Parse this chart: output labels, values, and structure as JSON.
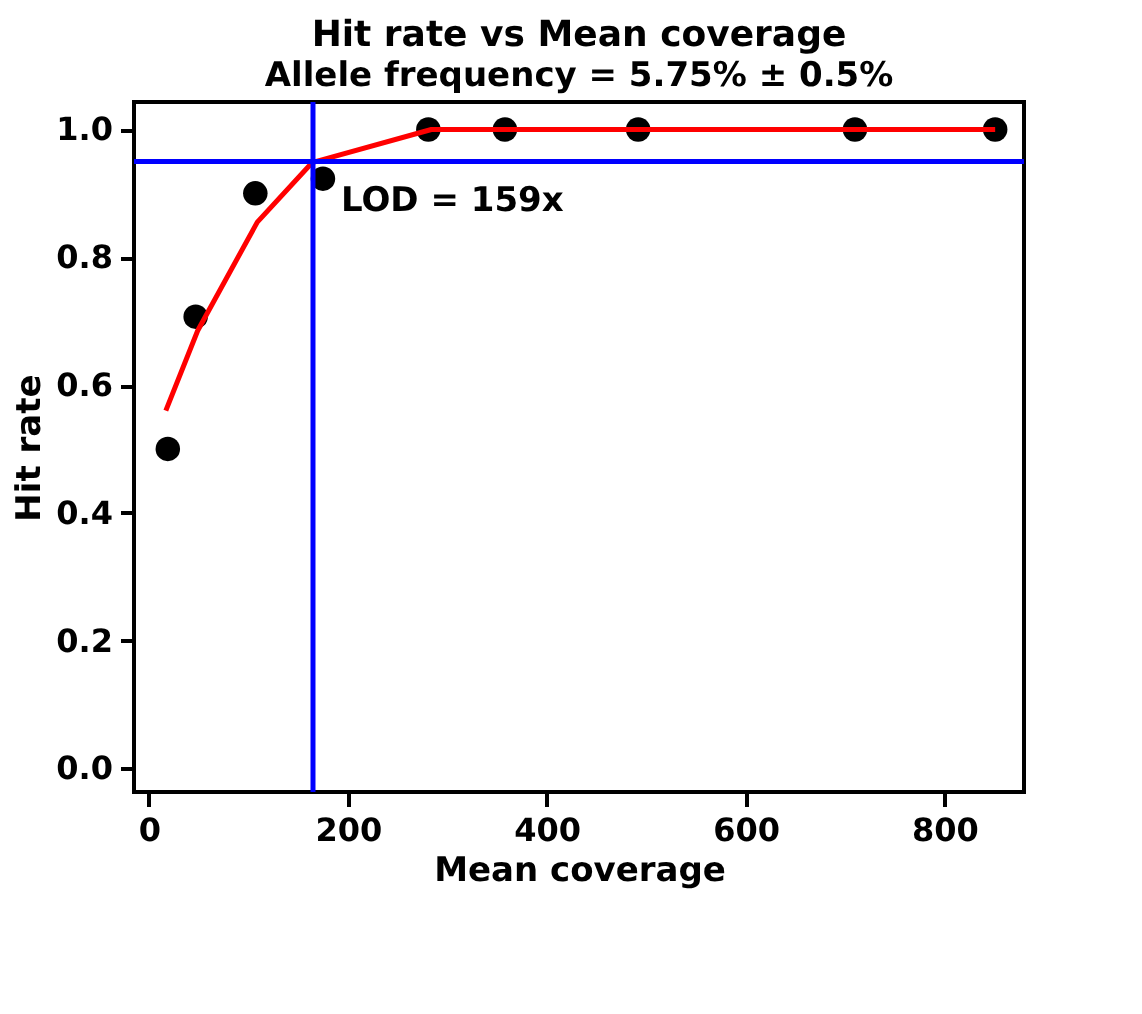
{
  "chart_data": {
    "type": "scatter",
    "title": "Hit rate vs Mean coverage",
    "subtitle": "Allele frequency = 5.75% ± 0.5%",
    "xlabel": "Mean coverage",
    "ylabel": "Hit rate",
    "xlim": [
      -15,
      880
    ],
    "ylim": [
      -0.037,
      1.043
    ],
    "xticks": [
      0,
      200,
      400,
      600,
      800
    ],
    "yticks": [
      {
        "value": 0,
        "label": "0.0"
      },
      {
        "value": 0.2,
        "label": "0.2"
      },
      {
        "value": 0.4,
        "label": "0.4"
      },
      {
        "value": 0.6,
        "label": "0.6"
      },
      {
        "value": 0.8,
        "label": "0.8"
      },
      {
        "value": 1,
        "label": "1.0"
      }
    ],
    "grid": false,
    "marker": "circle",
    "series": [
      {
        "color": "#000000",
        "x": [
          19,
          47,
          107,
          175,
          281,
          358,
          492,
          710,
          851
        ],
        "values": [
          0.5,
          0.707,
          0.9,
          0.923,
          1.0,
          1.0,
          1.0,
          1.0,
          1.0
        ]
      },
      {
        "type": "line",
        "marker": "none",
        "color": "#ff0000",
        "x": [
          17,
          49,
          109,
          164,
          284,
          851
        ],
        "values": [
          0.56,
          0.685,
          0.855,
          0.948,
          1.0,
          1.0
        ]
      }
    ],
    "ref_lines": [
      {
        "axis": "x",
        "value": 165,
        "color": "#0000ff"
      },
      {
        "axis": "y",
        "value": 0.95,
        "color": "#0000ff"
      }
    ],
    "annotations": [
      {
        "text": "LOD = 159x",
        "x": 165,
        "y": 0.95
      }
    ]
  }
}
